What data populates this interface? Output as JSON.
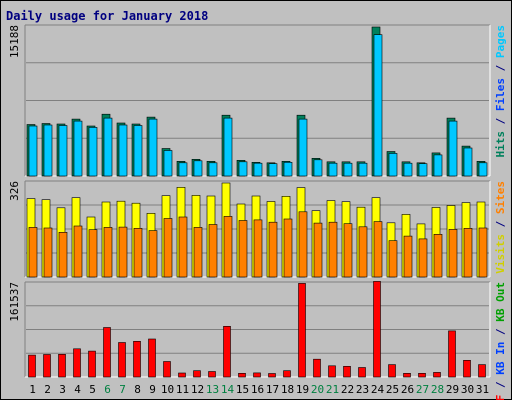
{
  "chart_data": {
    "type": "bar",
    "title": "Daily usage for January 2018",
    "categories": [
      "1",
      "2",
      "3",
      "4",
      "5",
      "6",
      "7",
      "8",
      "9",
      "10",
      "11",
      "12",
      "13",
      "14",
      "15",
      "16",
      "17",
      "18",
      "19",
      "20",
      "21",
      "22",
      "23",
      "24",
      "25",
      "26",
      "27",
      "28",
      "29",
      "30",
      "31"
    ],
    "weekend_days": [
      6,
      7,
      13,
      14,
      20,
      21,
      27,
      28
    ],
    "panels": [
      {
        "name": "hits-files-pages",
        "max_label": "15188",
        "ylim": [
          0,
          15188
        ],
        "right_labels": [
          {
            "text": "Hits",
            "color": "#00805c"
          },
          {
            "text": " / ",
            "color": "#000080"
          },
          {
            "text": "Files",
            "color": "#0040ff"
          },
          {
            "text": " / ",
            "color": "#000080"
          },
          {
            "text": "Pages",
            "color": "#00c8ff"
          }
        ],
        "series": [
          {
            "name": "Hits",
            "color": "#00805c",
            "values": [
              5250,
              5350,
              5300,
              5800,
              5100,
              6300,
              5400,
              5300,
              6000,
              2800,
              1500,
              1700,
              1500,
              6200,
              1600,
              1400,
              1350,
              1500,
              6200,
              1800,
              1450,
              1450,
              1450,
              15188,
              2500,
              1450,
              1350,
              2350,
              5900,
              3050,
              1500
            ]
          },
          {
            "name": "Files",
            "color": "#00c8ff",
            "values": [
              5100,
              5200,
              5150,
              5600,
              4950,
              5900,
              5200,
              5150,
              5800,
              2600,
              1350,
              1550,
              1350,
              5900,
              1450,
              1300,
              1250,
              1400,
              5800,
              1650,
              1300,
              1300,
              1300,
              14400,
              2300,
              1300,
              1250,
              2150,
              5600,
              2850,
              1350
            ]
          }
        ]
      },
      {
        "name": "visits-sites",
        "max_label": "326",
        "ylim": [
          0,
          326
        ],
        "right_labels": [
          {
            "text": "Visits",
            "color": "#d0d000"
          },
          {
            "text": " / ",
            "color": "#000080"
          },
          {
            "text": "Sites",
            "color": "#ff8000"
          }
        ],
        "series": [
          {
            "name": "Visits",
            "color": "#ffff00",
            "values": [
              272,
              268,
              240,
              275,
              208,
              260,
              263,
              256,
              221,
              282,
              311,
              283,
              281,
              326,
              253,
              281,
              262,
              280,
              310,
              230,
              265,
              261,
              242,
              275,
              188,
              217,
              184,
              241,
              248,
              258,
              260
            ]
          },
          {
            "name": "Sites",
            "color": "#ff8000",
            "values": [
              172,
              170,
              155,
              177,
              164,
              172,
              173,
              169,
              161,
              203,
              208,
              172,
              182,
              210,
              196,
              198,
              190,
              201,
              226,
              187,
              190,
              185,
              174,
              192,
              126,
              142,
              132,
              148,
              165,
              169,
              170
            ]
          }
        ]
      },
      {
        "name": "kbytes",
        "max_label": "161537",
        "ylim": [
          0,
          161537
        ],
        "right_labels": [
          {
            "text": "KB F",
            "color": "#ff0000"
          },
          {
            "text": " / ",
            "color": "#000080"
          },
          {
            "text": "KB In",
            "color": "#0040ff"
          },
          {
            "text": " / ",
            "color": "#000080"
          },
          {
            "text": "KB Out",
            "color": "#00a000"
          }
        ],
        "series": [
          {
            "name": "KB F",
            "color": "#ff0000",
            "values": [
              38000,
              39000,
              39500,
              49000,
              45000,
              86000,
              60000,
              62000,
              66000,
              27000,
              7000,
              11000,
              9500,
              88000,
              6500,
              7200,
              6000,
              11000,
              162500,
              31000,
              19500,
              18500,
              16500,
              166000,
              21500,
              6500,
              6500,
              8000,
              80000,
              29000,
              21500
            ]
          }
        ]
      }
    ]
  }
}
